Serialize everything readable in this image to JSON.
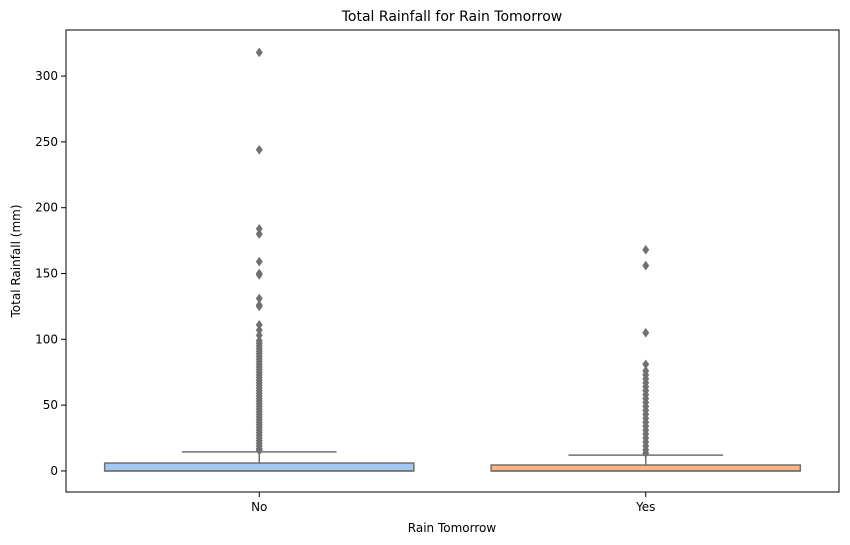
{
  "chart_data": {
    "type": "box",
    "title": "Total Rainfall for Rain Tomorrow",
    "xlabel": "Rain Tomorrow",
    "ylabel": "Total Rainfall (mm)",
    "categories": [
      "No",
      "Yes"
    ],
    "ylim": [
      -16,
      335
    ],
    "yticks": [
      0,
      50,
      100,
      150,
      200,
      250,
      300
    ],
    "grid": false,
    "legend": "none",
    "series": [
      {
        "category": "No",
        "color": "#a1c9f4",
        "whisker_low": 0,
        "q1": 0,
        "median": 0,
        "q3": 6,
        "whisker_high": 14.5,
        "outliers": [
          318,
          244,
          184,
          180,
          159,
          150,
          149,
          131,
          125,
          126,
          111,
          107,
          103,
          99,
          97,
          95,
          93,
          91,
          89,
          87,
          85,
          83,
          81,
          79,
          77,
          75,
          73,
          71,
          69,
          67,
          65,
          63,
          61,
          59,
          57,
          55,
          53,
          51,
          49,
          47,
          45,
          43,
          41,
          39,
          37,
          35,
          33,
          31,
          29,
          27,
          25,
          23,
          21,
          19,
          17,
          15.5
        ]
      },
      {
        "category": "Yes",
        "color": "#ffb482",
        "whisker_low": 0,
        "q1": 0,
        "median": 0,
        "q3": 4.5,
        "whisker_high": 12,
        "outliers": [
          168,
          156,
          105,
          81,
          76,
          73,
          70,
          67,
          64,
          61,
          58,
          55,
          52,
          49,
          46,
          43,
          40,
          37,
          34,
          31,
          28,
          25,
          22,
          19,
          16,
          13.5
        ]
      }
    ],
    "box_edge_color": "#707070",
    "outlier_color": "#707070"
  }
}
